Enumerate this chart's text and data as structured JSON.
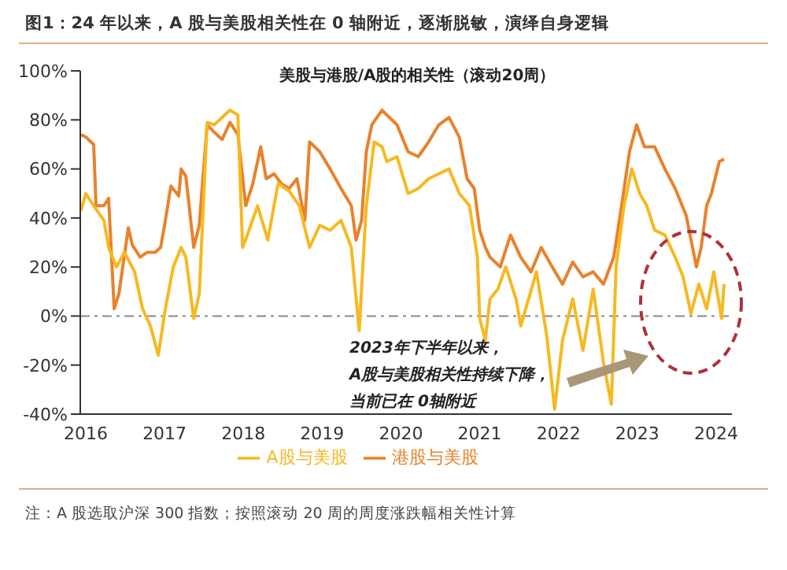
{
  "chart_data": {
    "type": "line",
    "title": "图1：24 年以来，A 股与美股相关性在 0 轴附近，逐渐脱敏，演绎自身逻辑",
    "subtitle": "美股与港股/A股的相关性（滚动20周）",
    "series": [
      {
        "name": "港股与美股",
        "color": "#e8822c",
        "x": [
          2015.94,
          2016.0,
          2016.1,
          2016.13,
          2016.23,
          2016.29,
          2016.36,
          2016.42,
          2016.54,
          2016.59,
          2016.69,
          2016.78,
          2016.88,
          2016.95,
          2017.01,
          2017.08,
          2017.18,
          2017.21,
          2017.27,
          2017.37,
          2017.44,
          2017.54,
          2017.63,
          2017.73,
          2017.83,
          2017.93,
          2018.03,
          2018.12,
          2018.22,
          2018.29,
          2018.39,
          2018.48,
          2018.58,
          2018.68,
          2018.78,
          2018.84,
          2018.97,
          2019.1,
          2019.24,
          2019.37,
          2019.43,
          2019.5,
          2019.56,
          2019.63,
          2019.76,
          2019.82,
          2019.95,
          2020.09,
          2020.22,
          2020.35,
          2020.48,
          2020.61,
          2020.74,
          2020.84,
          2020.93,
          2021.0,
          2021.07,
          2021.13,
          2021.26,
          2021.39,
          2021.52,
          2021.65,
          2021.78,
          2021.92,
          2022.05,
          2022.18,
          2022.31,
          2022.44,
          2022.57,
          2022.7,
          2022.8,
          2022.9,
          2022.99,
          2023.09,
          2023.22,
          2023.35,
          2023.48,
          2023.62,
          2023.75,
          2023.81,
          2023.88,
          2023.94,
          2024.04,
          2024.1
        ],
        "values": [
          74,
          73,
          70,
          45,
          45,
          48,
          3,
          9,
          36,
          29,
          24,
          26,
          26,
          28,
          39,
          53,
          49,
          60,
          57,
          28,
          37,
          78,
          75,
          72,
          79,
          74,
          45,
          54,
          69,
          56,
          58,
          54,
          52,
          56,
          39,
          71,
          67,
          60,
          52,
          45,
          31,
          39,
          67,
          78,
          84,
          82,
          78,
          67,
          65,
          71,
          78,
          81,
          73,
          56,
          52,
          35,
          28,
          24,
          20,
          33,
          24,
          18,
          28,
          20,
          13,
          22,
          16,
          18,
          13,
          24,
          45,
          67,
          78,
          69,
          69,
          60,
          52,
          41,
          20,
          28,
          45,
          50,
          63,
          64
        ]
      },
      {
        "name": "A股与美股",
        "color": "#f5b922",
        "x": [
          2015.94,
          2016.0,
          2016.1,
          2016.23,
          2016.29,
          2016.39,
          2016.49,
          2016.62,
          2016.72,
          2016.82,
          2016.92,
          2017.01,
          2017.11,
          2017.21,
          2017.27,
          2017.37,
          2017.44,
          2017.54,
          2017.63,
          2017.73,
          2017.83,
          2017.93,
          2017.99,
          2018.05,
          2018.18,
          2018.31,
          2018.44,
          2018.58,
          2018.71,
          2018.84,
          2018.97,
          2019.1,
          2019.24,
          2019.37,
          2019.47,
          2019.56,
          2019.66,
          2019.76,
          2019.82,
          2019.95,
          2020.09,
          2020.22,
          2020.35,
          2020.48,
          2020.61,
          2020.74,
          2020.87,
          2020.97,
          2021.0,
          2021.07,
          2021.13,
          2021.23,
          2021.33,
          2021.46,
          2021.52,
          2021.72,
          2021.85,
          2021.95,
          2022.05,
          2022.18,
          2022.31,
          2022.44,
          2022.57,
          2022.67,
          2022.73,
          2022.83,
          2022.93,
          2023.03,
          2023.12,
          2023.22,
          2023.35,
          2023.48,
          2023.58,
          2023.68,
          2023.78,
          2023.88,
          2023.97,
          2024.07,
          2024.1
        ],
        "values": [
          43,
          50,
          45,
          39,
          28,
          20,
          26,
          18,
          3,
          -4,
          -16,
          3,
          20,
          28,
          24,
          -1,
          9,
          79,
          78,
          81,
          84,
          82,
          28,
          33,
          45,
          31,
          54,
          51,
          45,
          28,
          37,
          35,
          39,
          28,
          -6,
          45,
          71,
          69,
          63,
          65,
          50,
          52,
          56,
          58,
          60,
          50,
          45,
          24,
          -1,
          -10,
          7,
          11,
          20,
          7,
          -4,
          18,
          -8,
          -38,
          -10,
          7,
          -14,
          11,
          -19,
          -36,
          20,
          45,
          60,
          50,
          45,
          35,
          33,
          24,
          16,
          1,
          13,
          3,
          18,
          -1,
          13
        ]
      }
    ],
    "xlim": [
      2015.93,
      2024.2
    ],
    "xticks": [
      2016,
      2017,
      2018,
      2019,
      2020,
      2021,
      2022,
      2023,
      2024
    ],
    "ylim": [
      -40,
      100
    ],
    "yticks": [
      {
        "value": -40,
        "label": "-40%"
      },
      {
        "value": -20,
        "label": "-20%"
      },
      {
        "value": 0,
        "label": "0%"
      },
      {
        "value": 20,
        "label": "20%"
      },
      {
        "value": 40,
        "label": "40%"
      },
      {
        "value": 60,
        "label": "60%"
      },
      {
        "value": 80,
        "label": "80%"
      },
      {
        "value": 100,
        "label": "100%"
      }
    ],
    "ref_lines": [
      {
        "axis": "y",
        "value": 0,
        "color": "#888888",
        "line_style": "dashed"
      }
    ],
    "annotations": [
      "2023年下半年以来，",
      "A股与美股相关性持续下降，",
      "当前已在 0轴附近",
      "注：A 股选取沪深 300 指数；按照滚动 20 周的周度涨跌幅相关性计算"
    ],
    "legend": "bottom",
    "grid": false,
    "marker": "none",
    "line_style": "solid"
  }
}
